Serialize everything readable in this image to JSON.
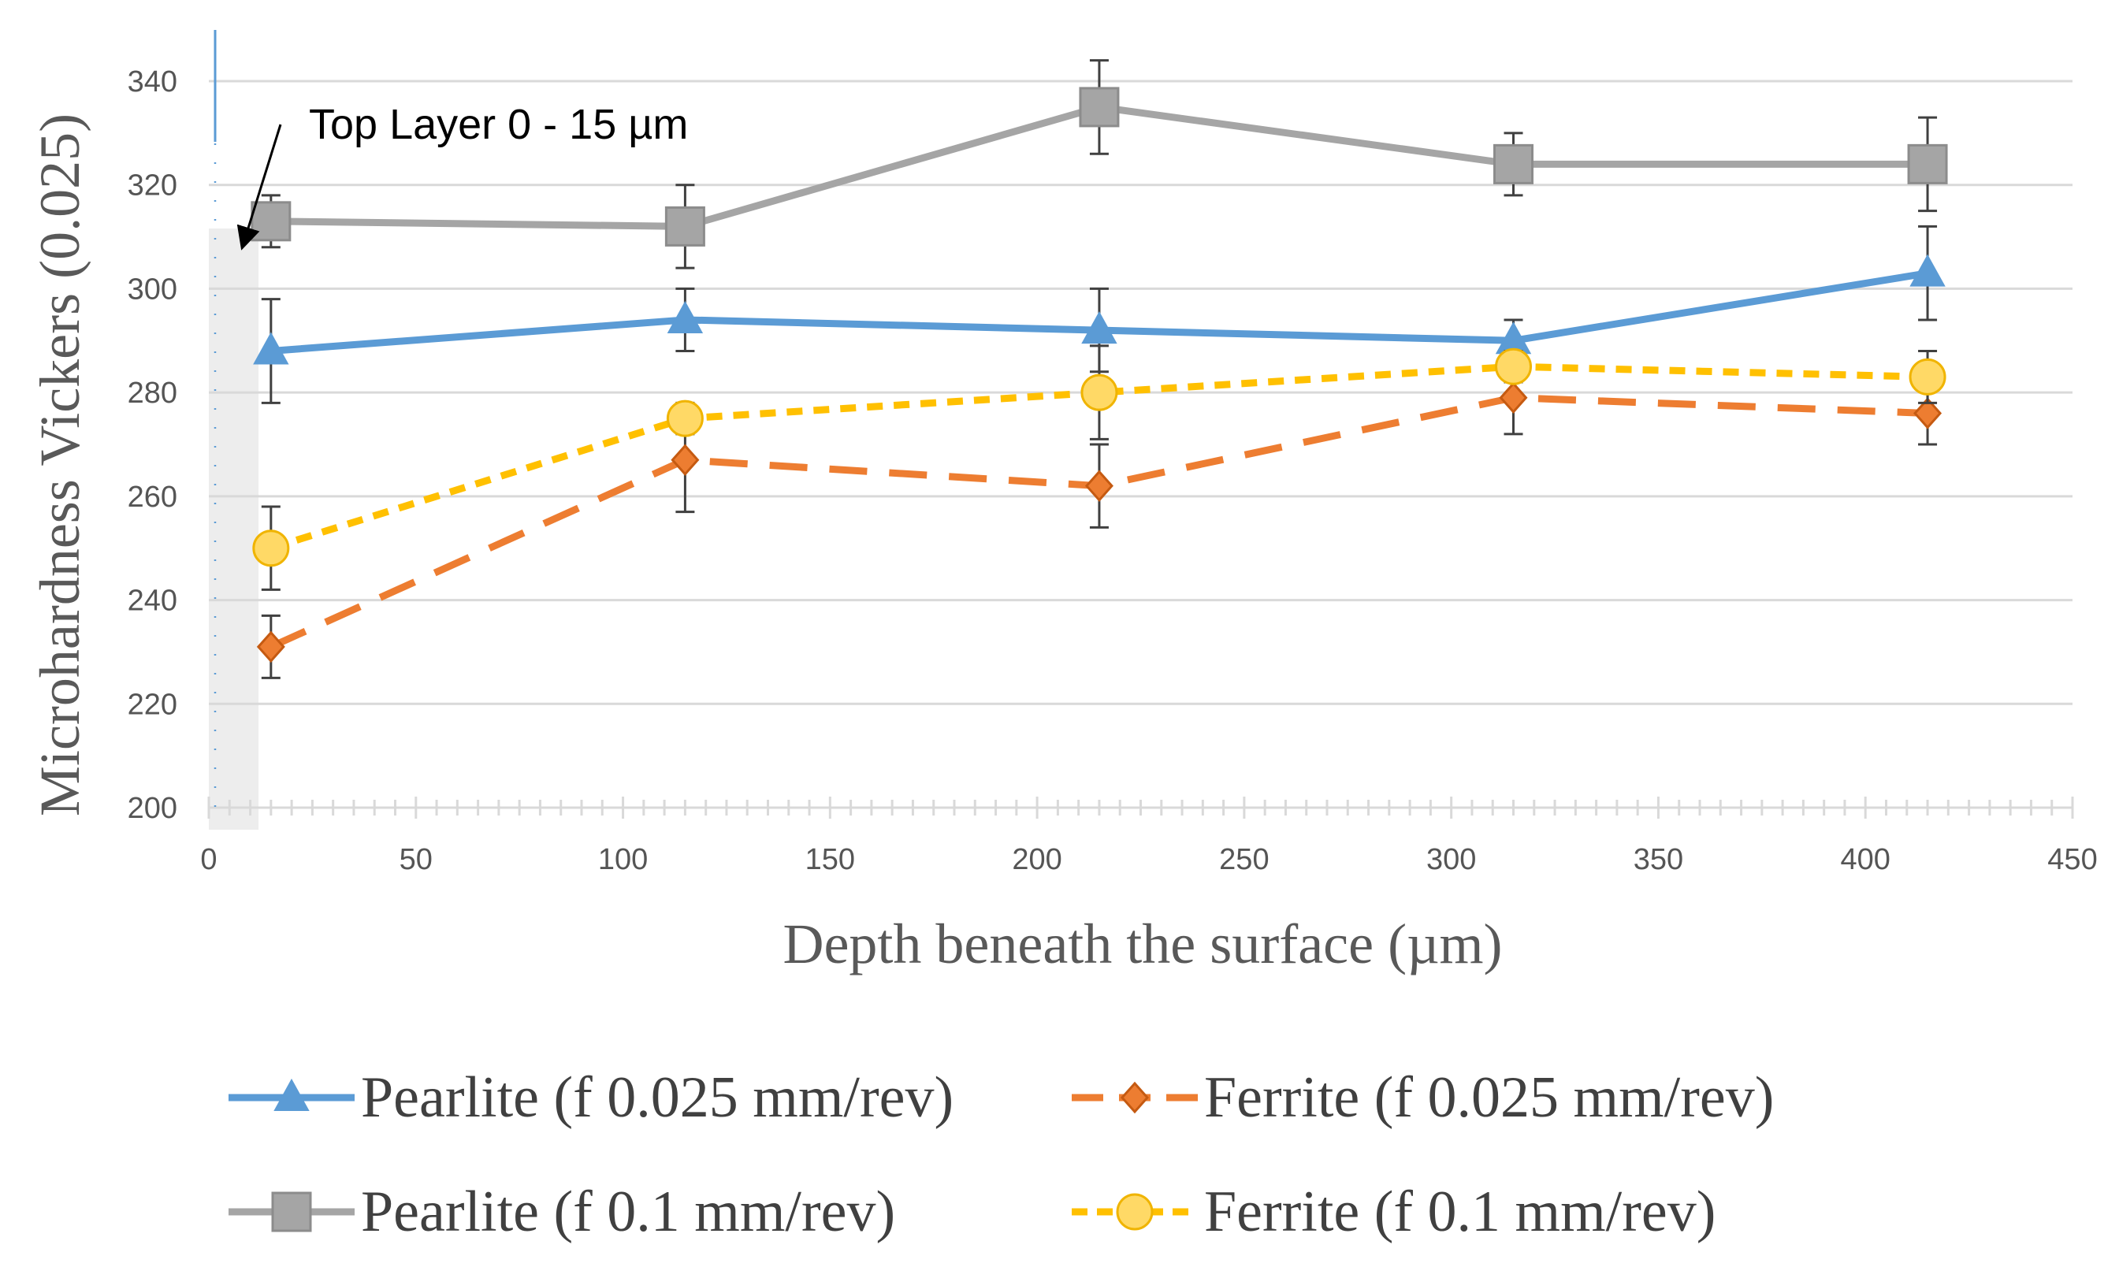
{
  "chart_data": {
    "type": "line",
    "title": "",
    "xlabel": "Depth beneath the surface (µm)",
    "ylabel": "Microhardness Vickers (0.025)",
    "xlim": [
      0,
      450
    ],
    "ylim": [
      200,
      340
    ],
    "x_ticks": [
      "0",
      "50",
      "100",
      "150",
      "200",
      "250",
      "300",
      "350",
      "400",
      "450"
    ],
    "y_ticks": [
      "200",
      "220",
      "240",
      "260",
      "280",
      "300",
      "320",
      "340"
    ],
    "grid": true,
    "legend_position": "bottom",
    "annotation": {
      "text": "Top Layer 0 - 15 µm",
      "shaded_x_range": [
        0,
        12
      ],
      "arrow_target_x": 5,
      "arrow_target_y": 312
    },
    "x": [
      15,
      115,
      215,
      315,
      415
    ],
    "series": [
      {
        "name": "Pearlite (f 0.025 mm/rev)",
        "color": "#5B9BD5",
        "marker": "triangle",
        "line_style": "solid",
        "values": [
          288,
          294,
          292,
          290,
          303
        ],
        "errors": [
          10,
          6,
          8,
          4,
          9
        ]
      },
      {
        "name": "Ferrite (f 0.025 mm/rev)",
        "color": "#ED7D31",
        "marker": "diamond",
        "line_style": "dashed",
        "values": [
          231,
          267,
          262,
          279,
          276
        ],
        "errors": [
          6,
          10,
          8,
          7,
          6
        ]
      },
      {
        "name": "Pearlite (f 0.1 mm/rev)",
        "color": "#A5A5A5",
        "marker": "square",
        "line_style": "solid",
        "values": [
          313,
          312,
          335,
          324,
          324
        ],
        "errors": [
          5,
          8,
          9,
          6,
          9
        ]
      },
      {
        "name": "Ferrite (f 0.1 mm/rev)",
        "color": "#FFC000",
        "marker": "circle",
        "line_style": "dotted",
        "values": [
          250,
          275,
          280,
          285,
          283
        ],
        "errors": [
          8,
          3,
          9,
          3,
          5
        ]
      }
    ]
  }
}
